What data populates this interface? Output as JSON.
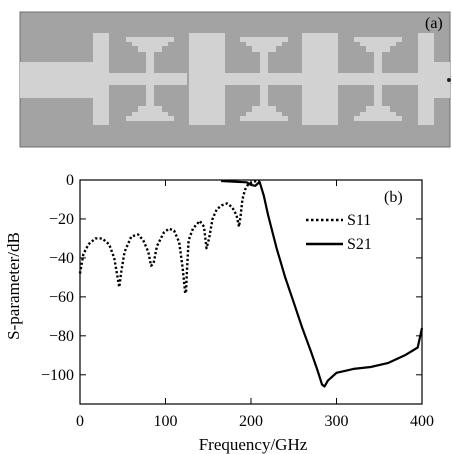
{
  "panel_a": {
    "label": "(a)",
    "colors": {
      "substrate": "#a3a3a3",
      "conductor": "#d2d2d2",
      "edge": "#6f6f6f"
    }
  },
  "chart_data": {
    "type": "line",
    "panel_label": "(b)",
    "xlabel": "Frequency/GHz",
    "ylabel": "S-parameter/dB",
    "xlim": [
      0,
      400
    ],
    "ylim": [
      -115,
      0
    ],
    "xticks": [
      0,
      100,
      200,
      300,
      400
    ],
    "yticks": [
      0,
      -20,
      -40,
      -60,
      -80,
      -100
    ],
    "grid": false,
    "legend_position": "top-right",
    "series": [
      {
        "name": "S11",
        "style": "dotted",
        "color": "#000000",
        "x": [
          0,
          4,
          10,
          18,
          26,
          34,
          40,
          44,
          46,
          48,
          52,
          60,
          68,
          74,
          80,
          83,
          86,
          90,
          98,
          104,
          110,
          116,
          120,
          123,
          124,
          125,
          127,
          132,
          140,
          145,
          148,
          151,
          155,
          160,
          166,
          172,
          178,
          183,
          186,
          188,
          190,
          193,
          197,
          200,
          203,
          206,
          208,
          210
        ],
        "y": [
          -48,
          -38,
          -33,
          -30,
          -30,
          -33,
          -40,
          -50,
          -55,
          -48,
          -37,
          -29,
          -28,
          -31,
          -37,
          -44,
          -43,
          -34,
          -27,
          -25,
          -26,
          -32,
          -45,
          -58,
          -58,
          -47,
          -31,
          -25,
          -21,
          -24,
          -35,
          -30,
          -20,
          -15,
          -13,
          -12,
          -14,
          -18,
          -24,
          -18,
          -10,
          -5,
          -2,
          -1.5,
          -1,
          -0.5,
          -0.8,
          -0.5
        ]
      },
      {
        "name": "S21",
        "style": "solid",
        "color": "#000000",
        "x": [
          165,
          185,
          195,
          200,
          205,
          210,
          215,
          220,
          230,
          240,
          250,
          260,
          270,
          278,
          283,
          286,
          290,
          300,
          320,
          340,
          360,
          380,
          395,
          398,
          400
        ],
        "y": [
          -0.5,
          -1,
          -1.2,
          -2.5,
          -3,
          -1,
          -8,
          -18,
          -35,
          -50,
          -63,
          -76,
          -88,
          -98,
          -105,
          -106,
          -103,
          -99,
          -97,
          -96,
          -94,
          -90,
          -86,
          -80,
          -76
        ]
      }
    ]
  }
}
